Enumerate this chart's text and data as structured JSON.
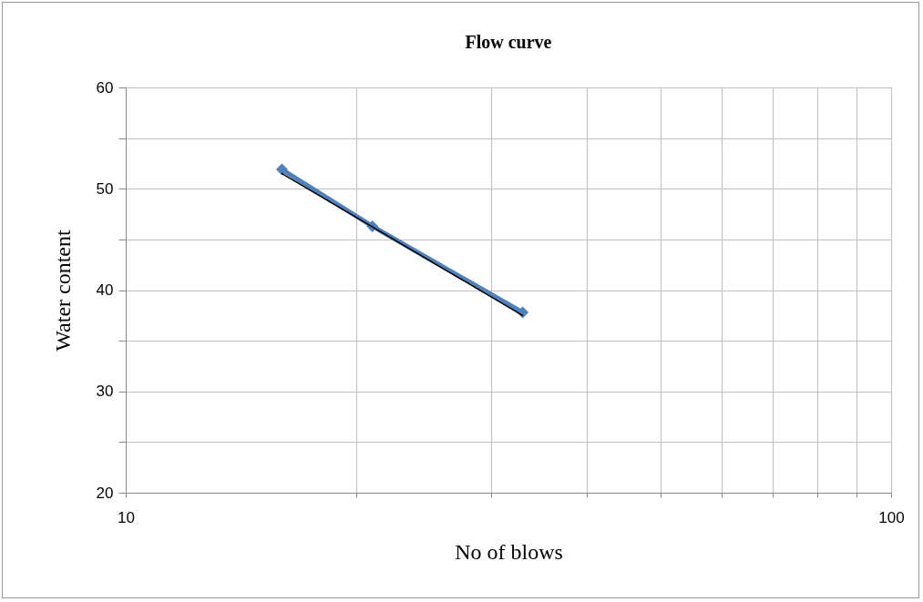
{
  "chart_data": {
    "type": "line",
    "title": "Flow curve",
    "xlabel": "No of blows",
    "ylabel": "Water content",
    "log": "x",
    "grid": true,
    "marker": "diamond",
    "xlim": [
      10,
      100
    ],
    "xticks": [
      10,
      {
        "value": 20,
        "label": null
      },
      {
        "value": 30,
        "label": null
      },
      {
        "value": 40,
        "label": null
      },
      {
        "value": 50,
        "label": null
      },
      {
        "value": 60,
        "label": null
      },
      {
        "value": 70,
        "label": null
      },
      {
        "value": 80,
        "label": null
      },
      {
        "value": 90,
        "label": null
      },
      100
    ],
    "ylim": [
      20,
      60
    ],
    "yticks": [
      20,
      {
        "value": 25,
        "label": null
      },
      30,
      {
        "value": 35,
        "label": null
      },
      40,
      {
        "value": 45,
        "label": null
      },
      50,
      {
        "value": 55,
        "label": null
      },
      60
    ],
    "series": [
      {
        "color": "#4f81bd",
        "x": [
          16,
          21,
          33
        ],
        "values": [
          51.9,
          46.3,
          37.8
        ]
      },
      {
        "type": "line",
        "color": "#000000",
        "marker": "none",
        "x": [
          16,
          33
        ],
        "values": [
          51.5,
          37.5
        ]
      }
    ]
  }
}
